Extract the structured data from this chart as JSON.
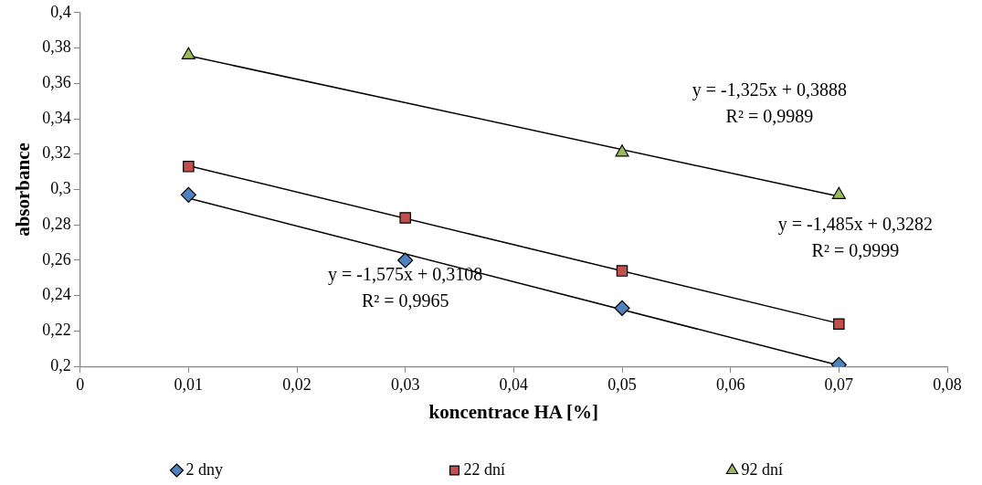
{
  "chart_data": {
    "type": "scatter",
    "xlabel": "koncentrace HA [%]",
    "ylabel": "absorbance",
    "xlim": [
      0,
      0.08
    ],
    "xticks": [
      {
        "value": 0,
        "label": "0"
      },
      {
        "value": 0.01,
        "label": "0,01"
      },
      {
        "value": 0.02,
        "label": "0,02"
      },
      {
        "value": 0.03,
        "label": "0,03"
      },
      {
        "value": 0.04,
        "label": "0,04"
      },
      {
        "value": 0.05,
        "label": "0,05"
      },
      {
        "value": 0.06,
        "label": "0,06"
      },
      {
        "value": 0.07,
        "label": "0,07"
      },
      {
        "value": 0.08,
        "label": "0,08"
      }
    ],
    "ylim": [
      0.2,
      0.4
    ],
    "yticks": [
      {
        "value": 0.2,
        "label": "0,2"
      },
      {
        "value": 0.22,
        "label": "0,22"
      },
      {
        "value": 0.24,
        "label": "0,24"
      },
      {
        "value": 0.26,
        "label": "0,26"
      },
      {
        "value": 0.28,
        "label": "0,28"
      },
      {
        "value": 0.3,
        "label": "0,3"
      },
      {
        "value": 0.32,
        "label": "0,32"
      },
      {
        "value": 0.34,
        "label": "0,34"
      },
      {
        "value": 0.36,
        "label": "0,36"
      },
      {
        "value": 0.38,
        "label": "0,38"
      },
      {
        "value": 0.4,
        "label": "0,4"
      }
    ],
    "grid": false,
    "legend": "bottom",
    "series": [
      {
        "name": "2 dny",
        "color": "#4f81bd",
        "marker": "diamond",
        "x": [
          0.01,
          0.03,
          0.05,
          0.07
        ],
        "values": [
          0.297,
          0.26,
          0.233,
          0.201
        ]
      },
      {
        "name": "22 dní",
        "color": "#c0504d",
        "marker": "square",
        "x": [
          0.01,
          0.03,
          0.05,
          0.07
        ],
        "values": [
          0.313,
          0.284,
          0.254,
          0.224
        ]
      },
      {
        "name": "92 dní",
        "color": "#9bbb59",
        "marker": "triangle",
        "x": [
          0.01,
          0.05,
          0.07
        ],
        "values": [
          0.376,
          0.321,
          0.297
        ]
      },
      {
        "type": "line",
        "color": "#000000",
        "marker": "none",
        "x": [
          0.01,
          0.07
        ],
        "values": [
          0.2951,
          0.2006
        ]
      },
      {
        "type": "line",
        "color": "#000000",
        "marker": "none",
        "x": [
          0.01,
          0.07
        ],
        "values": [
          0.3134,
          0.2243
        ]
      },
      {
        "type": "line",
        "color": "#000000",
        "marker": "none",
        "x": [
          0.01,
          0.07
        ],
        "values": [
          0.3756,
          0.2961
        ]
      }
    ],
    "annotations": [
      "y = -1,575x + 0,3108\nR² = 0,9965",
      "y = -1,485x + 0,3282\nR² = 0,9999",
      "y = -1,325x + 0,3888\nR² = 0,9989"
    ]
  }
}
